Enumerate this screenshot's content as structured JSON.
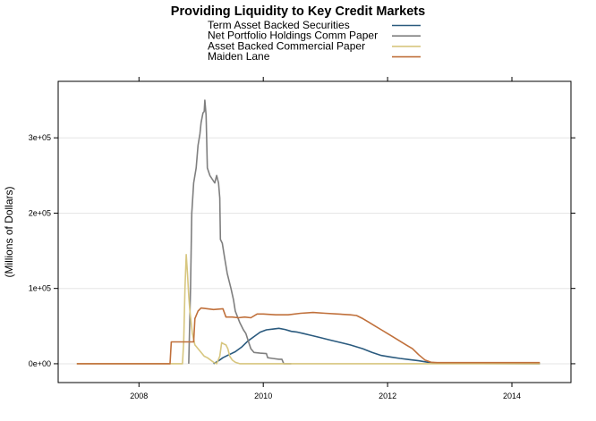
{
  "chart_data": {
    "type": "line",
    "title": "Providing Liquidity to Key Credit Markets",
    "xlabel": "",
    "ylabel": "(Millions of Dollars)",
    "xlim": [
      2006.7,
      2014.95
    ],
    "ylim": [
      -25000,
      375000
    ],
    "x_ticks": [
      2008,
      2010,
      2012,
      2014
    ],
    "x_tick_labels": [
      "2008",
      "2010",
      "2012",
      "2014"
    ],
    "y_ticks": [
      0,
      100000,
      200000,
      300000
    ],
    "y_tick_labels": [
      "0e+00",
      "1e+05",
      "2e+05",
      "3e+05"
    ],
    "grid": "horizontal",
    "legend_position": "top",
    "series": [
      {
        "name": "Term Asset Backed Securities",
        "color": "#2a5a7e",
        "points": [
          [
            2009.2,
            0
          ],
          [
            2009.24,
            2000
          ],
          [
            2009.3,
            5000
          ],
          [
            2009.35,
            8000
          ],
          [
            2009.45,
            12000
          ],
          [
            2009.55,
            16000
          ],
          [
            2009.65,
            22000
          ],
          [
            2009.75,
            30000
          ],
          [
            2009.85,
            36000
          ],
          [
            2009.95,
            42000
          ],
          [
            2010.05,
            45000
          ],
          [
            2010.15,
            46000
          ],
          [
            2010.25,
            47000
          ],
          [
            2010.35,
            45500
          ],
          [
            2010.45,
            43000
          ],
          [
            2010.55,
            42000
          ],
          [
            2010.65,
            40000
          ],
          [
            2010.75,
            38000
          ],
          [
            2010.9,
            35000
          ],
          [
            2011.05,
            32000
          ],
          [
            2011.2,
            29000
          ],
          [
            2011.4,
            25000
          ],
          [
            2011.6,
            20000
          ],
          [
            2011.75,
            15000
          ],
          [
            2011.9,
            11000
          ],
          [
            2012.05,
            9000
          ],
          [
            2012.2,
            7000
          ],
          [
            2012.35,
            5500
          ],
          [
            2012.5,
            4000
          ],
          [
            2012.65,
            2000
          ],
          [
            2012.8,
            1000
          ],
          [
            2013.0,
            500
          ],
          [
            2013.5,
            300
          ],
          [
            2014.0,
            200
          ],
          [
            2014.45,
            100
          ]
        ]
      },
      {
        "name": "Net Portfolio Holdings Comm Paper",
        "color": "#7f7f7f",
        "points": [
          [
            2008.8,
            0
          ],
          [
            2008.83,
            100000
          ],
          [
            2008.85,
            200000
          ],
          [
            2008.88,
            240000
          ],
          [
            2008.92,
            260000
          ],
          [
            2008.95,
            290000
          ],
          [
            2008.98,
            305000
          ],
          [
            2009.0,
            320000
          ],
          [
            2009.03,
            333000
          ],
          [
            2009.05,
            335000
          ],
          [
            2009.06,
            350000
          ],
          [
            2009.08,
            330000
          ],
          [
            2009.1,
            260000
          ],
          [
            2009.14,
            250000
          ],
          [
            2009.18,
            245000
          ],
          [
            2009.22,
            240000
          ],
          [
            2009.25,
            250000
          ],
          [
            2009.28,
            240000
          ],
          [
            2009.3,
            220000
          ],
          [
            2009.31,
            165000
          ],
          [
            2009.34,
            160000
          ],
          [
            2009.38,
            140000
          ],
          [
            2009.42,
            120000
          ],
          [
            2009.45,
            110000
          ],
          [
            2009.48,
            100000
          ],
          [
            2009.52,
            85000
          ],
          [
            2009.55,
            70000
          ],
          [
            2009.62,
            55000
          ],
          [
            2009.68,
            45000
          ],
          [
            2009.72,
            40000
          ],
          [
            2009.76,
            30000
          ],
          [
            2009.8,
            20000
          ],
          [
            2009.85,
            15000
          ],
          [
            2009.95,
            14000
          ],
          [
            2010.05,
            13500
          ],
          [
            2010.07,
            8000
          ],
          [
            2010.15,
            7000
          ],
          [
            2010.25,
            6000
          ],
          [
            2010.3,
            6000
          ],
          [
            2010.33,
            0
          ],
          [
            2010.45,
            0
          ]
        ]
      },
      {
        "name": "Asset Backed Commercial Paper",
        "color": "#d7c67f",
        "points": [
          [
            2007.0,
            0
          ],
          [
            2008.7,
            0
          ],
          [
            2008.72,
            30000
          ],
          [
            2008.74,
            100000
          ],
          [
            2008.76,
            145000
          ],
          [
            2008.78,
            120000
          ],
          [
            2008.8,
            90000
          ],
          [
            2008.82,
            70000
          ],
          [
            2008.86,
            40000
          ],
          [
            2008.9,
            25000
          ],
          [
            2008.95,
            20000
          ],
          [
            2009.0,
            15000
          ],
          [
            2009.05,
            10000
          ],
          [
            2009.1,
            8000
          ],
          [
            2009.15,
            5000
          ],
          [
            2009.2,
            2000
          ],
          [
            2009.25,
            0
          ],
          [
            2009.3,
            10000
          ],
          [
            2009.33,
            28000
          ],
          [
            2009.37,
            26000
          ],
          [
            2009.4,
            25000
          ],
          [
            2009.43,
            20000
          ],
          [
            2009.46,
            10000
          ],
          [
            2009.5,
            5000
          ],
          [
            2009.55,
            2000
          ],
          [
            2009.62,
            0
          ],
          [
            2014.45,
            0
          ]
        ]
      },
      {
        "name": "Maiden Lane",
        "color": "#c0703b",
        "points": [
          [
            2007.0,
            0
          ],
          [
            2008.5,
            0
          ],
          [
            2008.52,
            29000
          ],
          [
            2008.6,
            29000
          ],
          [
            2008.7,
            29000
          ],
          [
            2008.8,
            29000
          ],
          [
            2008.88,
            29000
          ],
          [
            2008.9,
            60000
          ],
          [
            2008.95,
            70000
          ],
          [
            2009.0,
            74000
          ],
          [
            2009.1,
            73000
          ],
          [
            2009.2,
            72000
          ],
          [
            2009.35,
            73000
          ],
          [
            2009.4,
            62000
          ],
          [
            2009.5,
            62000
          ],
          [
            2009.6,
            61000
          ],
          [
            2009.7,
            62000
          ],
          [
            2009.8,
            61000
          ],
          [
            2009.9,
            66000
          ],
          [
            2010.0,
            66000
          ],
          [
            2010.2,
            65000
          ],
          [
            2010.4,
            65000
          ],
          [
            2010.6,
            67000
          ],
          [
            2010.8,
            68000
          ],
          [
            2011.0,
            67000
          ],
          [
            2011.2,
            66000
          ],
          [
            2011.4,
            65000
          ],
          [
            2011.5,
            64000
          ],
          [
            2011.6,
            60000
          ],
          [
            2011.7,
            55000
          ],
          [
            2011.8,
            50000
          ],
          [
            2011.9,
            45000
          ],
          [
            2012.0,
            40000
          ],
          [
            2012.1,
            35000
          ],
          [
            2012.2,
            30000
          ],
          [
            2012.3,
            25000
          ],
          [
            2012.4,
            20000
          ],
          [
            2012.5,
            12000
          ],
          [
            2012.6,
            5000
          ],
          [
            2012.7,
            2000
          ],
          [
            2012.8,
            1500
          ],
          [
            2013.5,
            1500
          ],
          [
            2014.0,
            1500
          ],
          [
            2014.45,
            1500
          ]
        ]
      }
    ]
  }
}
